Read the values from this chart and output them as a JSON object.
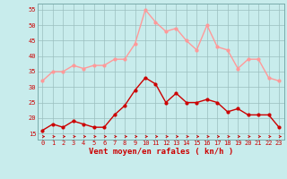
{
  "x": [
    0,
    1,
    2,
    3,
    4,
    5,
    6,
    7,
    8,
    9,
    10,
    11,
    12,
    13,
    14,
    15,
    16,
    17,
    18,
    19,
    20,
    21,
    22,
    23
  ],
  "vent_moyen": [
    16,
    18,
    17,
    19,
    18,
    17,
    17,
    21,
    24,
    29,
    33,
    31,
    25,
    28,
    25,
    25,
    26,
    25,
    22,
    23,
    21,
    21,
    21,
    17
  ],
  "rafales": [
    32,
    35,
    35,
    37,
    36,
    37,
    37,
    39,
    39,
    44,
    55,
    51,
    48,
    49,
    45,
    42,
    50,
    43,
    42,
    36,
    39,
    39,
    33,
    32
  ],
  "xlabel": "Vent moyen/en rafales ( kn/h )",
  "bg_color": "#c8ecec",
  "grid_color": "#9bbfbf",
  "line_color_moyen": "#cc0000",
  "line_color_rafales": "#ff9999",
  "arrow_color": "#cc0000",
  "ylim": [
    13,
    57
  ],
  "xlim": [
    -0.5,
    23.5
  ],
  "yticks": [
    15,
    20,
    25,
    30,
    35,
    40,
    45,
    50,
    55
  ],
  "xticks": [
    0,
    1,
    2,
    3,
    4,
    5,
    6,
    7,
    8,
    9,
    10,
    11,
    12,
    13,
    14,
    15,
    16,
    17,
    18,
    19,
    20,
    21,
    22,
    23
  ],
  "marker_size": 2,
  "line_width": 1.0,
  "tick_fontsize": 5,
  "xlabel_fontsize": 6.5
}
